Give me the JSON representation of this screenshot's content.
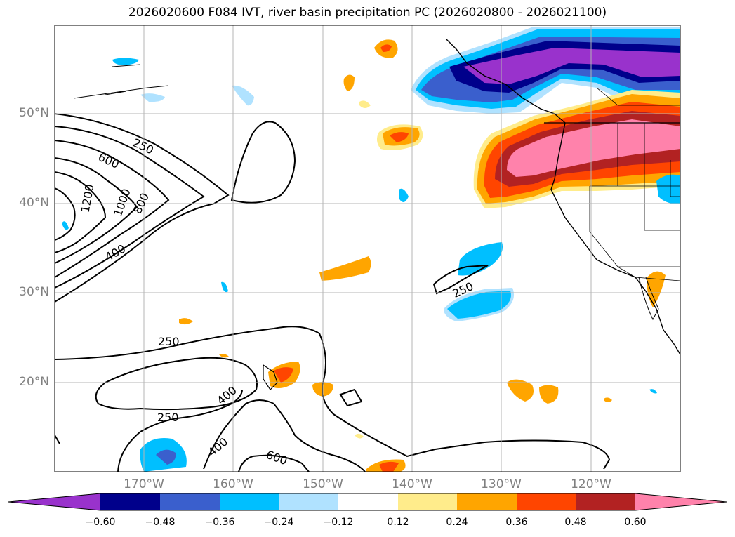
{
  "title": "2026020600 F084 IVT, river basin precipitation PC (2026020800 - 2026021100)",
  "lat_labels": [
    "50°N",
    "40°N",
    "30°N",
    "20°N"
  ],
  "lon_labels": [
    "170°W",
    "160°W",
    "150°W",
    "140°W",
    "130°W",
    "120°W"
  ],
  "colorbar": {
    "ticks": [
      "−0.60",
      "−0.48",
      "−0.36",
      "−0.24",
      "−0.12",
      "0.12",
      "0.24",
      "0.36",
      "0.48",
      "0.60"
    ],
    "colors": [
      "#9932cc",
      "#00008b",
      "#3a5fcd",
      "#00bfff",
      "#b0e2ff",
      "#ffffff",
      "#ffec8b",
      "#ffa500",
      "#ff4500",
      "#b22222",
      "#ff82ab"
    ]
  },
  "contour_labels": [
    "250",
    "600",
    "1200",
    "1000",
    "800",
    "400",
    "250",
    "250",
    "400",
    "250",
    "400",
    "600"
  ],
  "colors": {
    "positive_high": "#ff82ab",
    "negative_low": "#9932cc"
  }
}
